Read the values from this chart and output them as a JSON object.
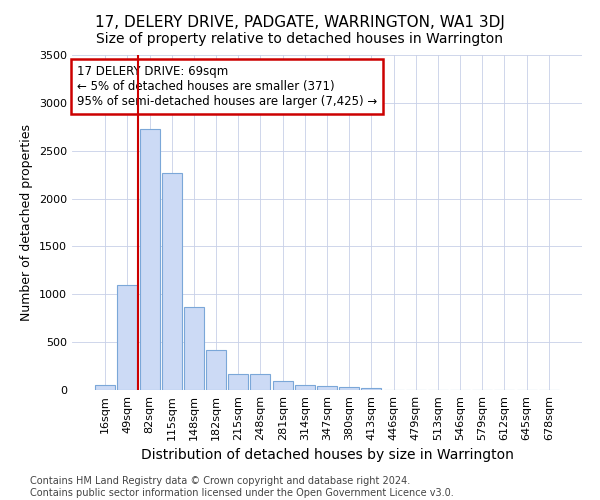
{
  "title": "17, DELERY DRIVE, PADGATE, WARRINGTON, WA1 3DJ",
  "subtitle": "Size of property relative to detached houses in Warrington",
  "xlabel": "Distribution of detached houses by size in Warrington",
  "ylabel": "Number of detached properties",
  "bar_labels": [
    "16sqm",
    "49sqm",
    "82sqm",
    "115sqm",
    "148sqm",
    "182sqm",
    "215sqm",
    "248sqm",
    "281sqm",
    "314sqm",
    "347sqm",
    "380sqm",
    "413sqm",
    "446sqm",
    "479sqm",
    "513sqm",
    "546sqm",
    "579sqm",
    "612sqm",
    "645sqm",
    "678sqm"
  ],
  "bar_values": [
    50,
    1100,
    2730,
    2270,
    870,
    415,
    170,
    170,
    95,
    55,
    45,
    30,
    20,
    0,
    0,
    0,
    0,
    0,
    0,
    0,
    0
  ],
  "bar_color": "#ccdaf5",
  "bar_edge_color": "#7ba7d8",
  "property_line_x": 1.5,
  "annotation_line1": "17 DELERY DRIVE: 69sqm",
  "annotation_line2": "← 5% of detached houses are smaller (371)",
  "annotation_line3": "95% of semi-detached houses are larger (7,425) →",
  "annotation_box_facecolor": "#ffffff",
  "annotation_box_edgecolor": "#cc0000",
  "red_line_color": "#cc0000",
  "ylim": [
    0,
    3500
  ],
  "yticks": [
    0,
    500,
    1000,
    1500,
    2000,
    2500,
    3000,
    3500
  ],
  "footer_line1": "Contains HM Land Registry data © Crown copyright and database right 2024.",
  "footer_line2": "Contains public sector information licensed under the Open Government Licence v3.0.",
  "bg_color": "#ffffff",
  "grid_color": "#c8d0e8",
  "title_fontsize": 11,
  "subtitle_fontsize": 10,
  "xlabel_fontsize": 10,
  "ylabel_fontsize": 9,
  "tick_fontsize": 8,
  "footer_fontsize": 7
}
